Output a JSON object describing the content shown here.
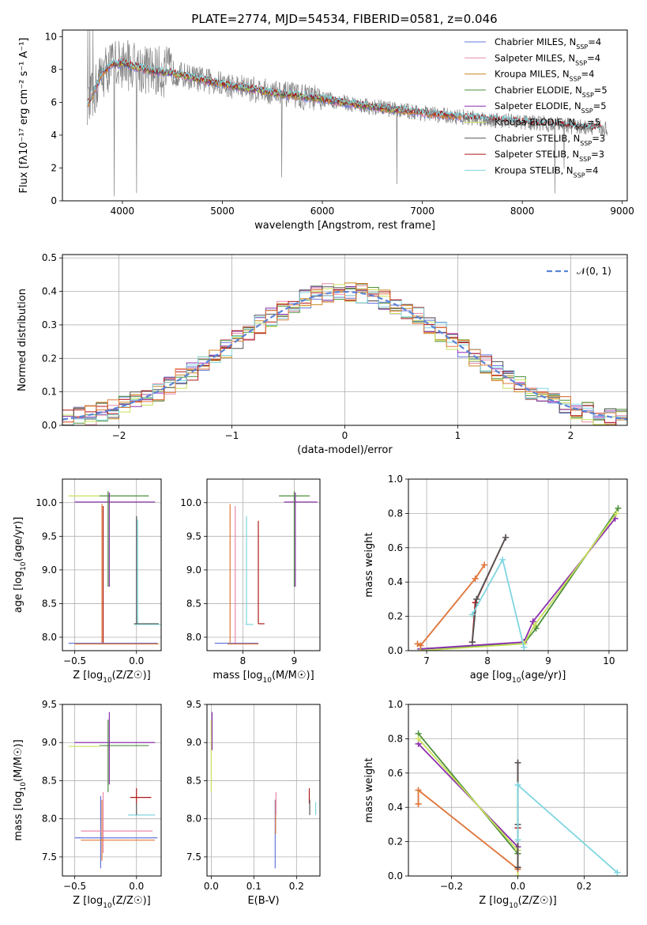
{
  "figure": {
    "title": "PLATE=2774, MJD=54534, FIBERID=0581, z=0.046"
  },
  "colors": {
    "Chabrier MILES": "#6677dd",
    "Salpeter MILES": "#e88aa8",
    "Kroupa MILES": "#c8861f",
    "Chabrier ELODIE": "#4d8f3a",
    "Salpeter ELODIE": "#8b2fb0",
    "Kroupa ELODIE": "#c8e05a",
    "Chabrier STELIB": "#555555",
    "Salpeter STELIB": "#b01818",
    "Kroupa STELIB": "#7fd6e0",
    "data": "#808080",
    "orange": "#e07a3a",
    "normal": "#5b84d6"
  },
  "chart_data": [
    {
      "id": "spectrum",
      "type": "line",
      "xlabel": "wavelength [Angstrom, rest frame]",
      "ylabel": "Flux [f_λ10^-17 erg cm^-2 s^-1 A^-1]",
      "xlim": [
        3400,
        9050
      ],
      "ylim": [
        0,
        10.4
      ],
      "xticks": [
        4000,
        5000,
        6000,
        7000,
        8000,
        9000
      ],
      "yticks": [
        0,
        2,
        4,
        6,
        8,
        10
      ],
      "legend_position": "top-right",
      "legend": [
        {
          "base": "Chabrier MILES, N",
          "sub": "SSP",
          "tail": "=4",
          "key": "Chabrier MILES"
        },
        {
          "base": "Salpeter MILES, N",
          "sub": "SSP",
          "tail": "=4",
          "key": "Salpeter MILES"
        },
        {
          "base": "Kroupa MILES, N",
          "sub": "SSP",
          "tail": "=4",
          "key": "Kroupa MILES"
        },
        {
          "base": "Chabrier ELODIE, N",
          "sub": "SSP",
          "tail": "=5",
          "key": "Chabrier ELODIE"
        },
        {
          "base": "Salpeter ELODIE, N",
          "sub": "SSP",
          "tail": "=5",
          "key": "Salpeter ELODIE"
        },
        {
          "base": "Kroupa ELODIE, N",
          "sub": "SSP",
          "tail": "=5",
          "key": "Kroupa ELODIE"
        },
        {
          "base": "Chabrier STELIB, N",
          "sub": "SSP",
          "tail": "=3",
          "key": "Chabrier STELIB"
        },
        {
          "base": "Salpeter STELIB, N",
          "sub": "SSP",
          "tail": "=3",
          "key": "Salpeter STELIB"
        },
        {
          "base": "Kroupa STELIB, N",
          "sub": "SSP",
          "tail": "=4",
          "key": "Kroupa STELIB"
        }
      ],
      "continuum": {
        "wavelength": [
          3650,
          3700,
          3800,
          3900,
          4000,
          4100,
          4300,
          4500,
          4700,
          5000,
          5300,
          5600,
          6000,
          6400,
          6800,
          7200,
          7600,
          8000,
          8400,
          8800
        ],
        "flux": [
          5.9,
          6.4,
          7.8,
          8.3,
          8.4,
          8.2,
          7.9,
          7.8,
          7.5,
          7.1,
          6.8,
          6.5,
          6.2,
          5.8,
          5.5,
          5.2,
          5.0,
          4.8,
          4.6,
          4.4
        ]
      },
      "model_ranges": {
        "Chabrier MILES": [
          3650,
          7400
        ],
        "Salpeter MILES": [
          3650,
          7400
        ],
        "Kroupa MILES": [
          3650,
          7400
        ],
        "Chabrier ELODIE": [
          3900,
          6800
        ],
        "Salpeter ELODIE": [
          3900,
          6800
        ],
        "Kroupa ELODIE": [
          3900,
          6800
        ],
        "Chabrier STELIB": [
          3650,
          8800
        ],
        "Salpeter STELIB": [
          3650,
          8800
        ],
        "Kroupa STELIB": [
          3650,
          8800
        ]
      }
    },
    {
      "id": "residuals",
      "type": "line",
      "xlabel": "(data-model)/error",
      "ylabel": "Normed distribution",
      "xlim": [
        -2.5,
        2.5
      ],
      "ylim": [
        0,
        0.51
      ],
      "xticks": [
        -2,
        -1,
        0,
        1,
        2
      ],
      "yticks": [
        0.0,
        0.1,
        0.2,
        0.3,
        0.4,
        0.5
      ],
      "grid": true,
      "legend_position": "top-right",
      "legend": [
        {
          "label": "𝒩(0, 1)",
          "key": "normal"
        }
      ],
      "bin_edges_start": -2.5,
      "bin_width": 0.1,
      "num_bins": 50
    },
    {
      "id": "age-z",
      "type": "scatter",
      "xlabel": "Z [log10(Z/Z☉)]",
      "ylabel": "age  [log10(age/yr)]",
      "xlim": [
        -0.6,
        0.2
      ],
      "ylim": [
        7.8,
        10.35
      ],
      "xticks": [
        -0.5,
        0.0
      ],
      "yticks": [
        8.0,
        8.5,
        9.0,
        9.5,
        10.0
      ],
      "grid": true,
      "segments": [
        {
          "key": "Kroupa ELODIE",
          "x": [
            -0.55,
            -0.3
          ],
          "y": [
            10.1,
            10.1
          ]
        },
        {
          "key": "Chabrier ELODIE",
          "x": [
            -0.3,
            0.1
          ],
          "y": [
            10.1,
            10.1
          ]
        },
        {
          "key": "Salpeter ELODIE",
          "x": [
            -0.5,
            0.15
          ],
          "y": [
            10.01,
            10.01
          ]
        },
        {
          "key": "Chabrier ELODIE",
          "x": [
            -0.23,
            -0.23
          ],
          "y": [
            8.75,
            10.17
          ]
        },
        {
          "key": "Salpeter ELODIE",
          "x": [
            -0.22,
            -0.22
          ],
          "y": [
            8.75,
            10.15
          ]
        },
        {
          "key": "orange",
          "x": [
            -0.28,
            -0.28
          ],
          "y": [
            7.91,
            9.98
          ]
        },
        {
          "key": "Salpeter STELIB",
          "x": [
            -0.27,
            -0.27
          ],
          "y": [
            7.91,
            9.95
          ]
        },
        {
          "key": "Chabrier STELIB",
          "x": [
            0.0,
            0.0
          ],
          "y": [
            8.2,
            9.8
          ]
        },
        {
          "key": "Kroupa STELIB",
          "x": [
            0.01,
            0.01
          ],
          "y": [
            8.2,
            9.75
          ]
        },
        {
          "key": "Kroupa STELIB",
          "x": [
            -0.02,
            0.2
          ],
          "y": [
            8.19,
            8.19
          ]
        },
        {
          "key": "Chabrier STELIB",
          "x": [
            -0.02,
            0.18
          ],
          "y": [
            8.2,
            8.2
          ]
        },
        {
          "key": "Chabrier MILES",
          "x": [
            -0.55,
            0.17
          ],
          "y": [
            7.91,
            7.91
          ]
        },
        {
          "key": "orange",
          "x": [
            -0.5,
            0.18
          ],
          "y": [
            7.9,
            7.9
          ]
        }
      ]
    },
    {
      "id": "age-mass",
      "type": "scatter",
      "xlabel": "mass [log10(M/M☉)]",
      "ylabel": "",
      "xlim": [
        7.3,
        9.5
      ],
      "ylim": [
        7.8,
        10.35
      ],
      "xticks": [
        8,
        9
      ],
      "yticks": [
        8.0,
        8.5,
        9.0,
        9.5,
        10.0
      ],
      "grid": true,
      "segments": [
        {
          "key": "Chabrier ELODIE",
          "x": [
            8.7,
            9.3
          ],
          "y": [
            10.1,
            10.1
          ]
        },
        {
          "key": "Salpeter ELODIE",
          "x": [
            8.8,
            9.45
          ],
          "y": [
            10.01,
            10.01
          ]
        },
        {
          "key": "Chabrier ELODIE",
          "x": [
            9.0,
            9.0
          ],
          "y": [
            8.75,
            10.17
          ]
        },
        {
          "key": "Salpeter ELODIE",
          "x": [
            9.02,
            9.02
          ],
          "y": [
            8.75,
            10.15
          ]
        },
        {
          "key": "orange",
          "x": [
            7.75,
            7.75
          ],
          "y": [
            7.91,
            9.98
          ]
        },
        {
          "key": "Salpeter MILES",
          "x": [
            7.85,
            7.85
          ],
          "y": [
            7.91,
            9.95
          ]
        },
        {
          "key": "Kroupa STELIB",
          "x": [
            8.07,
            8.07
          ],
          "y": [
            8.19,
            9.8
          ]
        },
        {
          "key": "Salpeter STELIB",
          "x": [
            8.3,
            8.3
          ],
          "y": [
            8.2,
            9.73
          ]
        },
        {
          "key": "Kroupa STELIB",
          "x": [
            8.05,
            8.2
          ],
          "y": [
            8.19,
            8.19
          ]
        },
        {
          "key": "Salpeter STELIB",
          "x": [
            8.3,
            8.42
          ],
          "y": [
            8.2,
            8.2
          ]
        },
        {
          "key": "Chabrier MILES",
          "x": [
            7.45,
            8.3
          ],
          "y": [
            7.91,
            7.91
          ]
        },
        {
          "key": "orange",
          "x": [
            7.7,
            8.3
          ],
          "y": [
            7.9,
            7.9
          ]
        }
      ]
    },
    {
      "id": "massweight-age",
      "type": "line",
      "xlabel": "age  [log10(age/yr)]",
      "ylabel": "mass weight",
      "xlim": [
        6.7,
        10.3
      ],
      "ylim": [
        0,
        1.0
      ],
      "xticks": [
        7,
        8,
        9,
        10
      ],
      "yticks": [
        0.0,
        0.2,
        0.4,
        0.6,
        0.8,
        1.0
      ],
      "grid": true,
      "series": [
        {
          "key": "Chabrier ELODIE",
          "x": [
            6.9,
            8.6,
            8.8,
            10.15
          ],
          "y": [
            0.01,
            0.04,
            0.13,
            0.83
          ]
        },
        {
          "key": "Salpeter ELODIE",
          "x": [
            6.9,
            8.6,
            8.75,
            10.1
          ],
          "y": [
            0.01,
            0.05,
            0.17,
            0.77
          ]
        },
        {
          "key": "Kroupa ELODIE",
          "x": [
            6.9,
            8.6,
            8.78,
            10.12
          ],
          "y": [
            0.0,
            0.04,
            0.15,
            0.8
          ]
        },
        {
          "key": "Salpeter STELIB",
          "x": [
            7.75,
            7.8,
            8.3
          ],
          "y": [
            0.05,
            0.28,
            0.66
          ]
        },
        {
          "key": "Chabrier STELIB",
          "x": [
            7.75,
            7.82,
            8.3
          ],
          "y": [
            0.05,
            0.3,
            0.66
          ]
        },
        {
          "key": "Kroupa STELIB",
          "x": [
            7.75,
            8.25,
            8.6
          ],
          "y": [
            0.21,
            0.53,
            0.02
          ]
        },
        {
          "key": "Salpeter MILES",
          "x": [
            6.85,
            6.9,
            7.8,
            7.95
          ],
          "y": [
            0.04,
            0.03,
            0.42,
            0.5
          ]
        },
        {
          "key": "orange",
          "x": [
            6.85,
            6.9,
            7.8,
            7.95
          ],
          "y": [
            0.04,
            0.03,
            0.42,
            0.5
          ]
        }
      ]
    },
    {
      "id": "mass-z",
      "type": "scatter",
      "xlabel": "Z [log10(Z/Z☉)]",
      "ylabel": "mass [log10(M/M☉)]",
      "xlim": [
        -0.6,
        0.2
      ],
      "ylim": [
        7.25,
        9.5
      ],
      "xticks": [
        -0.5,
        0.0
      ],
      "yticks": [
        7.5,
        8.0,
        8.5,
        9.0,
        9.5
      ],
      "grid": true,
      "segments": [
        {
          "key": "Salpeter ELODIE",
          "x": [
            -0.5,
            0.15
          ],
          "y": [
            9.0,
            9.0
          ]
        },
        {
          "key": "Kroupa ELODIE",
          "x": [
            -0.55,
            -0.3
          ],
          "y": [
            8.95,
            8.95
          ]
        },
        {
          "key": "Chabrier ELODIE",
          "x": [
            -0.3,
            0.1
          ],
          "y": [
            8.96,
            8.96
          ]
        },
        {
          "key": "Chabrier ELODIE",
          "x": [
            -0.23,
            -0.23
          ],
          "y": [
            8.35,
            9.3
          ]
        },
        {
          "key": "Salpeter ELODIE",
          "x": [
            -0.22,
            -0.22
          ],
          "y": [
            8.45,
            9.4
          ]
        },
        {
          "key": "Chabrier MILES",
          "x": [
            -0.29,
            -0.29
          ],
          "y": [
            7.35,
            8.3
          ]
        },
        {
          "key": "orange",
          "x": [
            -0.28,
            -0.28
          ],
          "y": [
            7.45,
            8.25
          ]
        },
        {
          "key": "Salpeter MILES",
          "x": [
            -0.27,
            -0.27
          ],
          "y": [
            7.55,
            8.35
          ]
        },
        {
          "key": "Salpeter MILES",
          "x": [
            -0.45,
            0.13
          ],
          "y": [
            7.84,
            7.84
          ]
        },
        {
          "key": "Chabrier MILES",
          "x": [
            -0.5,
            0.17
          ],
          "y": [
            7.75,
            7.75
          ]
        },
        {
          "key": "orange",
          "x": [
            -0.45,
            0.15
          ],
          "y": [
            7.72,
            7.72
          ]
        },
        {
          "key": "Salpeter STELIB",
          "x": [
            -0.05,
            0.12
          ],
          "y": [
            8.28,
            8.28
          ]
        },
        {
          "key": "Salpeter STELIB",
          "x": [
            0.0,
            0.0
          ],
          "y": [
            8.2,
            8.4
          ]
        },
        {
          "key": "Kroupa STELIB",
          "x": [
            -0.07,
            0.15
          ],
          "y": [
            8.05,
            8.05
          ]
        },
        {
          "key": "Chabrier STELIB",
          "x": [
            0.0,
            0.0
          ],
          "y": [
            8.05,
            8.2
          ]
        }
      ]
    },
    {
      "id": "mass-ebv",
      "type": "scatter",
      "xlabel": "E(B-V)",
      "ylabel": "",
      "xlim": [
        -0.01,
        0.255
      ],
      "ylim": [
        7.25,
        9.5
      ],
      "xticks": [
        0.0,
        0.1,
        0.2
      ],
      "yticks": [
        7.5,
        8.0,
        8.5,
        9.0,
        9.5
      ],
      "grid": true,
      "segments": [
        {
          "key": "Kroupa ELODIE",
          "x": [
            0.0,
            0.0
          ],
          "y": [
            8.35,
            9.3
          ]
        },
        {
          "key": "Salpeter ELODIE",
          "x": [
            0.002,
            0.002
          ],
          "y": [
            8.9,
            9.4
          ]
        },
        {
          "key": "Chabrier MILES",
          "x": [
            0.15,
            0.15
          ],
          "y": [
            7.35,
            8.25
          ]
        },
        {
          "key": "orange",
          "x": [
            0.151,
            0.151
          ],
          "y": [
            7.8,
            8.25
          ]
        },
        {
          "key": "Salpeter MILES",
          "x": [
            0.152,
            0.152
          ],
          "y": [
            8.05,
            8.35
          ]
        },
        {
          "key": "Salpeter STELIB",
          "x": [
            0.23,
            0.23
          ],
          "y": [
            8.2,
            8.4
          ]
        },
        {
          "key": "Chabrier STELIB",
          "x": [
            0.231,
            0.231
          ],
          "y": [
            8.05,
            8.25
          ]
        },
        {
          "key": "Kroupa STELIB",
          "x": [
            0.245,
            0.245
          ],
          "y": [
            8.05,
            8.22
          ]
        }
      ]
    },
    {
      "id": "massweight-z",
      "type": "line",
      "xlabel": "Z [log10(Z/Z☉)]",
      "ylabel": "mass weight",
      "xlim": [
        -0.33,
        0.33
      ],
      "ylim": [
        0,
        1.0
      ],
      "xticks": [
        -0.2,
        0.0,
        0.2
      ],
      "yticks": [
        0.0,
        0.2,
        0.4,
        0.6,
        0.8,
        1.0
      ],
      "grid": true,
      "series": [
        {
          "key": "Chabrier ELODIE",
          "x": [
            -0.3,
            0.0,
            0.0
          ],
          "y": [
            0.83,
            0.13,
            0.04
          ]
        },
        {
          "key": "Salpeter ELODIE",
          "x": [
            -0.3,
            0.0,
            0.0
          ],
          "y": [
            0.77,
            0.17,
            0.05
          ]
        },
        {
          "key": "Kroupa ELODIE",
          "x": [
            -0.3,
            0.0,
            0.0
          ],
          "y": [
            0.8,
            0.15,
            0.0
          ]
        },
        {
          "key": "Salpeter MILES",
          "x": [
            -0.3,
            -0.3,
            0.0
          ],
          "y": [
            0.42,
            0.5,
            0.04
          ]
        },
        {
          "key": "orange",
          "x": [
            -0.3,
            -0.3,
            0.0
          ],
          "y": [
            0.42,
            0.5,
            0.04
          ]
        },
        {
          "key": "Salpeter STELIB",
          "x": [
            0.0,
            0.0,
            0.0
          ],
          "y": [
            0.05,
            0.28,
            0.66
          ]
        },
        {
          "key": "Chabrier STELIB",
          "x": [
            0.0,
            0.0,
            0.0
          ],
          "y": [
            0.05,
            0.3,
            0.66
          ]
        },
        {
          "key": "Kroupa STELIB",
          "x": [
            0.0,
            0.0,
            0.3
          ],
          "y": [
            0.21,
            0.53,
            0.02
          ]
        }
      ]
    }
  ]
}
